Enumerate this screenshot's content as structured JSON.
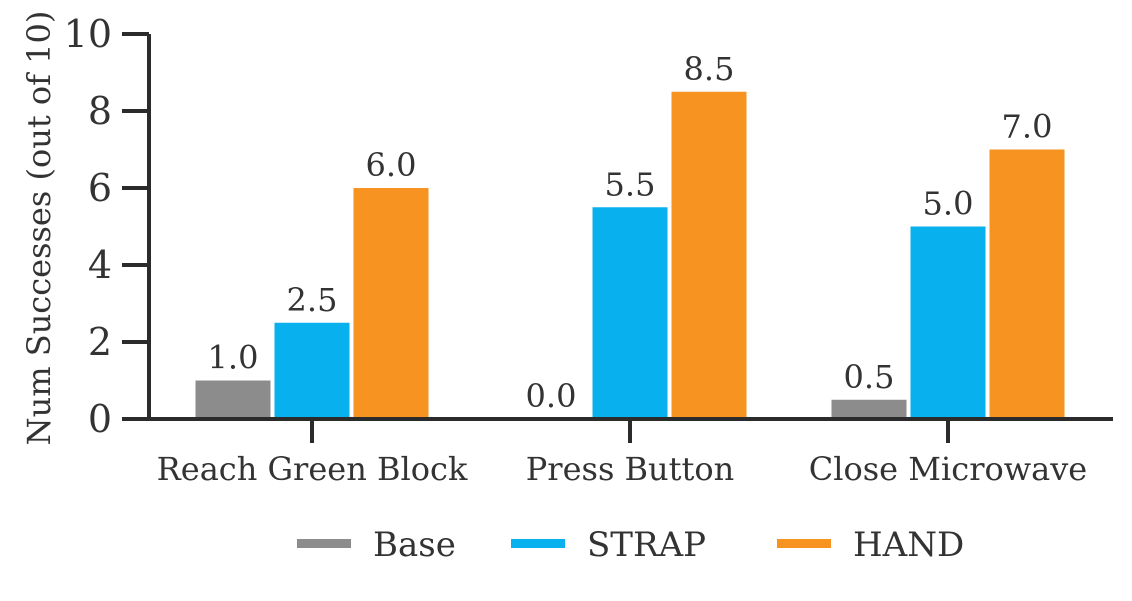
{
  "chart_data": {
    "type": "bar",
    "categories": [
      "Reach Green Block",
      "Press Button",
      "Close Microwave"
    ],
    "series": [
      {
        "name": "Base",
        "color": "#8c8c8c",
        "values": [
          1.0,
          0.0,
          0.5
        ]
      },
      {
        "name": "STRAP",
        "color": "#08b0ee",
        "values": [
          2.5,
          5.5,
          5.0
        ]
      },
      {
        "name": "HAND",
        "color": "#f79321",
        "values": [
          6.0,
          8.5,
          7.0
        ]
      }
    ],
    "data_labels": [
      [
        "1.0",
        "0.0",
        "0.5"
      ],
      [
        "2.5",
        "5.5",
        "5.0"
      ],
      [
        "6.0",
        "8.5",
        "7.0"
      ]
    ],
    "ylabel": "Num Successes (out of 10)",
    "xlabel": "",
    "ylim": [
      0,
      10
    ],
    "yticks": [
      0,
      2,
      4,
      6,
      8,
      10
    ],
    "grid": false,
    "legend_position": "bottom-center"
  }
}
